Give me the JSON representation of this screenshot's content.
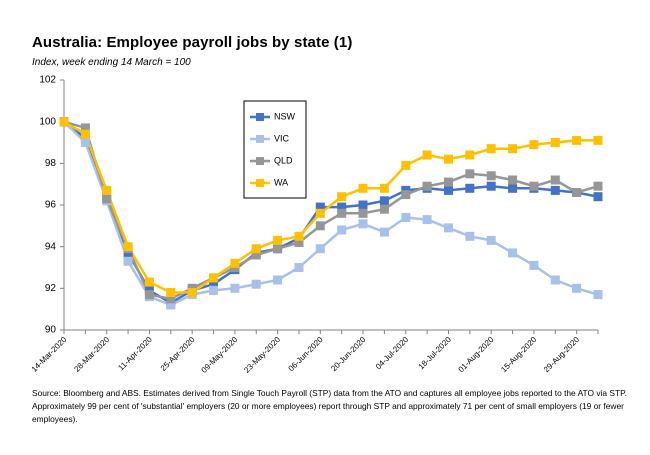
{
  "header": {
    "title": "Australia:  Employee payroll jobs by state (1)",
    "subtitle": "Index, week ending 14 March = 100"
  },
  "footnote": "Source: Bloomberg and ABS.  Estimates derived from Single Touch Payroll (STP) data from the ATO and captures all employee jobs reported to the ATO via STP.  Approximately 99 per cent of 'substantial' employers (20 or more employees) report through STP and approximately 71 per cent of small employers (19 or fewer employees).",
  "colors": {
    "NSW": "#4472C4",
    "VIC": "#A9C1E8",
    "QLD": "#969696",
    "WA": "#FFC000",
    "axis": "#808080",
    "legend_border": "#000000"
  },
  "chart_data": {
    "type": "line",
    "title": "Australia:  Employee payroll jobs by state (1)",
    "subtitle": "Index, week ending 14 March = 100",
    "xlabel": "",
    "ylabel": "",
    "ylim": [
      90,
      102
    ],
    "yticks": [
      90,
      92,
      94,
      96,
      98,
      100,
      102
    ],
    "grid": false,
    "legend_position": "upper-center",
    "x": [
      "14-Mar-2020",
      "21-Mar-2020",
      "28-Mar-2020",
      "04-Apr-2020",
      "11-Apr-2020",
      "18-Apr-2020",
      "25-Apr-2020",
      "02-May-2020",
      "09-May-2020",
      "16-May-2020",
      "23-May-2020",
      "30-May-2020",
      "06-Jun-2020",
      "13-Jun-2020",
      "20-Jun-2020",
      "27-Jun-2020",
      "04-Jul-2020",
      "11-Jul-2020",
      "18-Jul-2020",
      "25-Jul-2020",
      "01-Aug-2020",
      "08-Aug-2020",
      "15-Aug-2020",
      "22-Aug-2020",
      "29-Aug-2020",
      "05-Sep-2020"
    ],
    "xtick_labels": [
      "14-Mar-2020",
      "",
      "28-Mar-2020",
      "",
      "11-Apr-2020",
      "",
      "25-Apr-2020",
      "",
      "09-May-2020",
      "",
      "23-May-2020",
      "",
      "06-Jun-2020",
      "",
      "20-Jun-2020",
      "",
      "04-Jul-2020",
      "",
      "18-Jul-2020",
      "",
      "01-Aug-2020",
      "",
      "15-Aug-2020",
      "",
      "29-Aug-2020",
      ""
    ],
    "series": [
      {
        "name": "NSW",
        "values": [
          100.0,
          99.2,
          96.4,
          93.7,
          91.9,
          91.3,
          91.9,
          92.2,
          92.9,
          93.7,
          93.9,
          94.4,
          95.9,
          95.9,
          96.0,
          96.2,
          96.7,
          96.8,
          96.7,
          96.8,
          96.9,
          96.8,
          96.8,
          96.7,
          96.6,
          96.4
        ]
      },
      {
        "name": "VIC",
        "values": [
          100.0,
          99.0,
          96.2,
          93.3,
          91.6,
          91.2,
          91.7,
          91.9,
          92.0,
          92.2,
          92.4,
          93.0,
          93.9,
          94.8,
          95.1,
          94.7,
          95.4,
          95.3,
          94.9,
          94.5,
          94.3,
          93.7,
          93.1,
          92.4,
          92.0,
          91.7
        ]
      },
      {
        "name": "QLD",
        "values": [
          100.0,
          99.7,
          96.3,
          93.9,
          91.7,
          91.5,
          92.0,
          92.5,
          93.0,
          93.6,
          93.9,
          94.2,
          95.0,
          95.6,
          95.6,
          95.8,
          96.5,
          96.9,
          97.1,
          97.5,
          97.4,
          97.2,
          96.9,
          97.2,
          96.6,
          96.9
        ]
      },
      {
        "name": "WA",
        "values": [
          100.0,
          99.4,
          96.7,
          94.0,
          92.3,
          91.8,
          91.8,
          92.5,
          93.2,
          93.9,
          94.3,
          94.5,
          95.6,
          96.4,
          96.8,
          96.8,
          97.9,
          98.4,
          98.2,
          98.4,
          98.7,
          98.7,
          98.9,
          99.0,
          99.1,
          99.1
        ]
      }
    ]
  }
}
